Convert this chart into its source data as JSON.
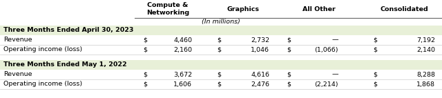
{
  "headers": [
    "Compute &\nNetworking",
    "Graphics",
    "All Other",
    "Consolidated"
  ],
  "subheader": "(In millions)",
  "section1_label": "Three Months Ended April 30, 2023",
  "section2_label": "Three Months Ended May 1, 2022",
  "rows": [
    {
      "label": "Revenue",
      "compute": "4,460",
      "graphics": "2,732",
      "allother": "—",
      "consolidated": "7,192"
    },
    {
      "label": "Operating income (loss)",
      "compute": "2,160",
      "graphics": "1,046",
      "allother": "(1,066)",
      "consolidated": "2,140"
    },
    {
      "label": "Revenue",
      "compute": "3,672",
      "graphics": "4,616",
      "allother": "—",
      "consolidated": "8,288"
    },
    {
      "label": "Operating income (loss)",
      "compute": "1,606",
      "graphics": "2,476",
      "allother": "(2,214)",
      "consolidated": "1,868"
    }
  ],
  "section_bg": "#e8f0d8",
  "row_bg": "#ffffff",
  "text_color": "#000000",
  "font_size": 6.8,
  "header_font_size": 6.8,
  "fig_w": 6.4,
  "fig_h": 1.42,
  "dpi": 100
}
